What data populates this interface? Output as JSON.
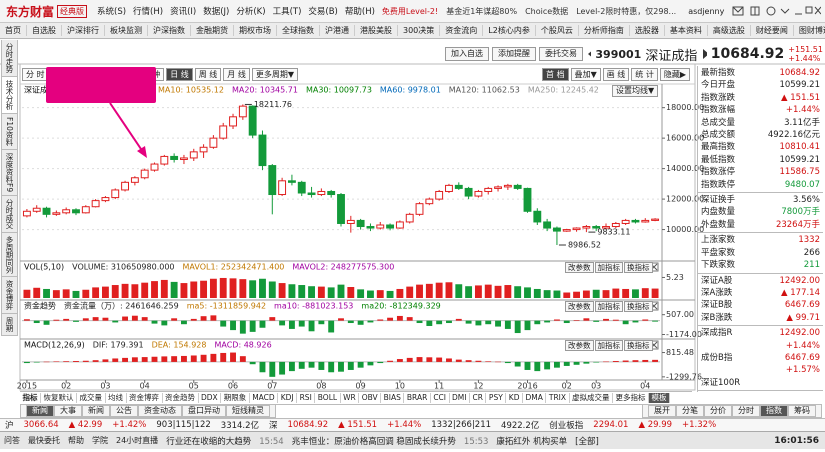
{
  "titlebar": {
    "logo": "东方财富",
    "edition": "经典版",
    "menus": [
      "系统(S)",
      "行情(H)",
      "资讯(I)",
      "数据(J)",
      "分析(K)",
      "工具(T)",
      "交易(B)",
      "帮助(H)"
    ],
    "promos": [
      "免费用Level-2!",
      "基金近1年谋超80%",
      "Choice数据",
      "Level-2限时特惠，仅298..."
    ],
    "user": "asdjenny"
  },
  "navbar": [
    "首页",
    "自选股",
    "沪深排行",
    "板块监测",
    "沪深指数",
    "金融期货",
    "期权市场",
    "全球指数",
    "沪港通",
    "港股美股",
    "300决策",
    "资金流向",
    "L2核心内参",
    "个股风云",
    "分析师指南",
    "选股器",
    "基本资料",
    "高级选股",
    "财经要闻",
    "图财博道",
    "返回"
  ],
  "sidetabs": [
    "分时走势",
    "技术分析",
    "F10资料",
    "深度资料F9",
    "分时成交",
    "多周期同列",
    "资金博弈",
    "周期"
  ],
  "quote_header": {
    "buttons": [
      "加入自选",
      "添加提醒",
      "委托交易"
    ],
    "code": "399001",
    "name": "深证成指",
    "price": "10684.92",
    "change": "+151.51",
    "percent": "+1.44%"
  },
  "chart_toolbar": {
    "periods": [
      "分 时",
      "5分",
      "15分",
      "30分",
      "60分钟",
      "日 线",
      "周 线",
      "月 线",
      "更多周期▼"
    ],
    "selected_period": 5,
    "tools": [
      "首 档",
      "叠加▼",
      "画 线",
      "统 计",
      "隐藏▶"
    ]
  },
  "settings_button": "设置均线▼",
  "panel_buttons": [
    "改参数",
    "加指标",
    "换指标"
  ],
  "chart_data": [
    {
      "type": "candlestick",
      "title": "深证成指",
      "up_color": "#e02020",
      "down_color": "#139a3a",
      "grid": true,
      "legend": [
        {
          "text": "MA10: 10535.12",
          "color": "#c07800"
        },
        {
          "text": "MA20: 10345.71",
          "color": "#a000a0"
        },
        {
          "text": "MA30: 10097.73",
          "color": "#008000"
        },
        {
          "text": "MA60: 9978.01",
          "color": "#0068b8"
        },
        {
          "text": "MA120: 11062.53",
          "color": "#555555"
        },
        {
          "text": "MA250: 12245.42",
          "color": "#999999"
        }
      ],
      "categories": [
        "2015",
        null,
        null,
        null,
        "02",
        null,
        null,
        null,
        "03",
        null,
        null,
        null,
        "04",
        null,
        null,
        null,
        null,
        "05",
        null,
        null,
        null,
        "06",
        null,
        null,
        null,
        "07",
        null,
        null,
        null,
        null,
        "08",
        null,
        null,
        null,
        "09",
        null,
        null,
        null,
        "10",
        null,
        null,
        null,
        "11",
        null,
        null,
        null,
        "12",
        null,
        null,
        null,
        null,
        "2016",
        null,
        null,
        null,
        "02",
        null,
        null,
        "03",
        null,
        null,
        null,
        null,
        "04",
        null
      ],
      "open": [
        10900,
        11200,
        11400,
        11000,
        11100,
        11300,
        11100,
        11500,
        11900,
        12100,
        12600,
        13100,
        13400,
        13900,
        14300,
        14800,
        14600,
        14700,
        15100,
        15400,
        16000,
        16800,
        17400,
        18100,
        16200,
        14200,
        12300,
        13200,
        13100,
        12400,
        12300,
        12500,
        12300,
        10400,
        10600,
        10200,
        10100,
        10300,
        10100,
        10500,
        11000,
        11700,
        12000,
        12500,
        12900,
        12700,
        12200,
        12500,
        12700,
        12800,
        12900,
        12700,
        11200,
        10500,
        10100,
        9900,
        10000,
        10100,
        10200,
        10100,
        10200,
        10400,
        10600,
        10500,
        10600
      ],
      "high": [
        11350,
        11600,
        11500,
        11250,
        11450,
        11400,
        11600,
        12000,
        12200,
        12700,
        13200,
        13500,
        14000,
        14400,
        14900,
        15000,
        14900,
        15300,
        15600,
        16200,
        17000,
        17600,
        18211.76,
        18150,
        16500,
        14300,
        13400,
        13600,
        13200,
        12800,
        12700,
        12600,
        12400,
        10900,
        10700,
        10400,
        10500,
        10400,
        10600,
        11100,
        11800,
        12100,
        12600,
        13000,
        13100,
        12800,
        12600,
        12800,
        12900,
        13000,
        13000,
        12750,
        11400,
        10700,
        10200,
        10050,
        10150,
        10300,
        10300,
        10400,
        10500,
        10700,
        10700,
        10750,
        10750
      ],
      "low": [
        10800,
        11100,
        10800,
        10900,
        11000,
        10950,
        11050,
        11450,
        11800,
        12000,
        12500,
        12900,
        13300,
        13800,
        14200,
        14400,
        14300,
        14500,
        14700,
        15300,
        15900,
        16600,
        17200,
        16000,
        13900,
        11000,
        12200,
        12900,
        12200,
        12100,
        12200,
        12100,
        10200,
        9800,
        10000,
        9900,
        10000,
        9950,
        10050,
        10400,
        10900,
        11600,
        11900,
        12400,
        12600,
        12000,
        12100,
        12300,
        12500,
        12600,
        12600,
        11100,
        10300,
        9900,
        8986.52,
        9850,
        9860,
        9833.11,
        9900,
        10000,
        10100,
        10300,
        10400,
        10450,
        10550
      ],
      "close": [
        11200,
        11400,
        11000,
        11100,
        11300,
        11100,
        11500,
        11900,
        12100,
        12600,
        13100,
        13400,
        13900,
        14300,
        14800,
        14600,
        14700,
        15100,
        15400,
        16000,
        16800,
        17400,
        18100,
        16200,
        14200,
        12300,
        13200,
        13100,
        12400,
        12300,
        12500,
        12300,
        10400,
        10600,
        10200,
        10100,
        10300,
        10100,
        10500,
        11000,
        11700,
        12000,
        12500,
        12900,
        12700,
        12200,
        12500,
        12700,
        12800,
        12900,
        12700,
        11200,
        10500,
        10100,
        9900,
        10000,
        10100,
        10200,
        10100,
        10200,
        10400,
        10600,
        10500,
        10600,
        10684.92
      ],
      "ylim": [
        8200,
        18700
      ],
      "yticks": [
        {
          "value": 18000,
          "label": "18000.00"
        },
        {
          "value": 16000,
          "label": "16000.00"
        },
        {
          "value": 14000,
          "label": "14000.00"
        },
        {
          "value": 12000,
          "label": "12000.00"
        },
        {
          "value": 10000,
          "label": "10000.00"
        }
      ]
    },
    {
      "type": "volume",
      "title": "VOL(5,10)",
      "legend": [
        {
          "text": "VOLUME: 310650980.000",
          "color": "#222222"
        },
        {
          "text": "MAVOL1: 252342471.400",
          "color": "#c07800"
        },
        {
          "text": "MAVOL2: 248277575.300",
          "color": "#a000a0"
        }
      ],
      "values": [
        2.1,
        2.6,
        2.3,
        2.0,
        2.2,
        1.8,
        2.1,
        2.7,
        2.9,
        3.3,
        3.6,
        3.5,
        3.9,
        4.3,
        4.6,
        4.1,
        3.8,
        4.2,
        4.4,
        4.9,
        5.1,
        5.0,
        4.8,
        4.5,
        4.9,
        4.2,
        3.8,
        3.5,
        3.3,
        3.0,
        2.9,
        2.7,
        3.4,
        2.8,
        2.2,
        1.9,
        2.0,
        1.8,
        2.3,
        2.9,
        3.4,
        3.6,
        3.9,
        4.0,
        3.5,
        3.0,
        3.2,
        3.4,
        3.1,
        3.3,
        3.0,
        2.7,
        2.3,
        2.0,
        1.9,
        1.4,
        1.6,
        1.9,
        2.1,
        2.0,
        2.4,
        2.3,
        2.2,
        2.5,
        2.4
      ],
      "ylim": [
        0,
        5.6
      ],
      "yticks": [
        5.23
      ]
    },
    {
      "type": "bar",
      "title": "资金趋势",
      "up_color": "#e02020",
      "down_color": "#139a3a",
      "legend": [
        {
          "text": "资金流量（万）: 2461646.259",
          "color": "#222222"
        },
        {
          "text": "ma5: -1311859.942",
          "color": "#c07800"
        },
        {
          "text": "ma10: -881023.153",
          "color": "#a000a0"
        },
        {
          "text": "ma20: -812349.329",
          "color": "#008000"
        }
      ],
      "values": [
        120,
        -200,
        -350,
        80,
        150,
        -100,
        200,
        300,
        250,
        -150,
        350,
        420,
        300,
        -250,
        -400,
        200,
        -300,
        150,
        380,
        450,
        -500,
        -800,
        -1100,
        -950,
        -600,
        300,
        -400,
        -700,
        -500,
        -900,
        -300,
        -1000,
        200,
        -200,
        -350,
        -150,
        100,
        250,
        400,
        300,
        -200,
        -450,
        -300,
        -200,
        150,
        -250,
        -400,
        -300,
        -500,
        -700,
        -1050,
        -800,
        -300,
        -150,
        100,
        -200,
        50,
        200,
        -100,
        150,
        80,
        -300,
        -150,
        100,
        -80
      ],
      "ylim": [
        -1300,
        650
      ],
      "yticks": [
        {
          "value": 507,
          "label": "507.00"
        },
        {
          "value": -1174,
          "label": "-1174.00"
        }
      ]
    },
    {
      "type": "bar",
      "title": "MACD(12,26,9)",
      "up_color": "#e02020",
      "down_color": "#139a3a",
      "legend": [
        {
          "text": "DIF: 179.391",
          "color": "#222222"
        },
        {
          "text": "DEA: 154.928",
          "color": "#c07800"
        },
        {
          "text": "MACD: 48.926",
          "color": "#a000a0"
        }
      ],
      "values": [
        -100,
        -50,
        20,
        40,
        60,
        80,
        100,
        150,
        220,
        300,
        350,
        400,
        420,
        450,
        480,
        500,
        520,
        560,
        620,
        700,
        780,
        815,
        500,
        -200,
        -900,
        -1299,
        -1100,
        -800,
        -600,
        -500,
        -700,
        -900,
        -850,
        -700,
        -500,
        -300,
        -100,
        100,
        250,
        350,
        420,
        400,
        380,
        300,
        200,
        150,
        100,
        50,
        20,
        -100,
        -400,
        -700,
        -800,
        -650,
        -500,
        -350,
        -250,
        -150,
        -50,
        30,
        80,
        120,
        150,
        170,
        179
      ],
      "ylim": [
        -1400,
        950
      ],
      "yticks": [
        {
          "value": 815.48,
          "label": "815.48"
        },
        {
          "value": -1299.76,
          "label": "-1299.76"
        }
      ]
    }
  ],
  "indicator_tabs": [
    "指标",
    "恢复默认",
    "成交量",
    "均线",
    "资金博弈",
    "资金趋势",
    "DDX",
    "期限象",
    "MACD",
    "KDJ",
    "RSI",
    "BOLL",
    "WR",
    "OBV",
    "BIAS",
    "BRAR",
    "CCI",
    "DMI",
    "CR",
    "PSY",
    "KD",
    "DMA",
    "TRIX",
    "虚拟成交量",
    "更多指标",
    "模板"
  ],
  "info_panel": [
    [
      {
        "label": "最新指数",
        "values": [
          "10684.92"
        ],
        "color": "#d01010"
      },
      {
        "label": "今日开盘",
        "values": [
          "10599.21"
        ],
        "color": "#222222"
      },
      {
        "label": "指数涨跌",
        "values": [
          "▲ 151.51"
        ],
        "color": "#d01010"
      },
      {
        "label": "指数涨幅",
        "values": [
          "+1.44%"
        ],
        "color": "#d01010"
      },
      {
        "label": "总成交量",
        "values": [
          "3.11亿手"
        ],
        "color": "#222222"
      },
      {
        "label": "总成交额",
        "values": [
          "4922.16亿元"
        ],
        "color": "#222222"
      },
      {
        "label": "最高指数",
        "values": [
          "10810.41"
        ],
        "color": "#d01010"
      },
      {
        "label": "最低指数",
        "values": [
          "10599.21"
        ],
        "color": "#222222"
      },
      {
        "label": "指数涨停",
        "values": [
          "11586.75"
        ],
        "color": "#d01010"
      },
      {
        "label": "指数跌停",
        "values": [
          "9480.07"
        ],
        "color": "#139a3a"
      }
    ],
    [
      {
        "label": "深证换手",
        "values": [
          "3.56%"
        ],
        "color": "#222222"
      },
      {
        "label": "内盘数量",
        "values": [
          "7800万手"
        ],
        "color": "#139a3a"
      },
      {
        "label": "外盘数量",
        "values": [
          "23264万手"
        ],
        "color": "#d01010"
      }
    ],
    [
      {
        "label": "上涨家数",
        "values": [
          "1332"
        ],
        "color": "#d01010"
      },
      {
        "label": "平盘家数",
        "values": [
          "266"
        ],
        "color": "#222222"
      },
      {
        "label": "下跌家数",
        "values": [
          "211"
        ],
        "color": "#139a3a"
      }
    ],
    [
      {
        "label": "深证A股",
        "values": [
          "12492.00"
        ],
        "color": "#d01010"
      },
      {
        "label": "深A涨跌",
        "values": [
          "▲ 177.14"
        ],
        "color": "#d01010"
      },
      {
        "label": "深证B股",
        "values": [
          "6467.69"
        ],
        "color": "#d01010"
      },
      {
        "label": "深B涨跌",
        "values": [
          "▲ 99.71"
        ],
        "color": "#d01010"
      }
    ],
    [
      {
        "label": "深成指R",
        "values": [
          "12492.00",
          "+1.44%"
        ],
        "color": "#d01010"
      },
      {
        "label": "成份B指",
        "values": [
          "6467.69",
          "+1.57%"
        ],
        "color": "#d01010"
      },
      {
        "label": "深证100R",
        "values": [],
        "color": "#222222"
      }
    ]
  ],
  "bottom_tabs": {
    "left": [
      "新闻",
      "大事",
      "新闻",
      "公告",
      "资金动态",
      "盘口异动",
      "短线精灵"
    ],
    "right": [
      "展开",
      "分笔",
      "分价",
      "分时",
      "指数",
      "筹码"
    ]
  },
  "ticker": [
    {
      "text": "沪",
      "color": "#222222"
    },
    {
      "text": "3066.64",
      "color": "#d01010"
    },
    {
      "text": "▲ 42.99",
      "color": "#d01010"
    },
    {
      "text": "+1.42%",
      "color": "#d01010"
    },
    {
      "text": "903|115|122",
      "color": "#222222"
    },
    {
      "text": "3314.2亿",
      "color": "#222222"
    },
    {
      "text": "深",
      "color": "#222222"
    },
    {
      "text": "10684.92",
      "color": "#d01010"
    },
    {
      "text": "▲ 151.51",
      "color": "#d01010"
    },
    {
      "text": "+1.44%",
      "color": "#d01010"
    },
    {
      "text": "1332|266|211",
      "color": "#222222"
    },
    {
      "text": "4922.2亿",
      "color": "#222222"
    },
    {
      "text": "创业板指",
      "color": "#222222"
    },
    {
      "text": "2294.01",
      "color": "#d01010"
    },
    {
      "text": "▲ 29.99",
      "color": "#d01010"
    },
    {
      "text": "+1.32%",
      "color": "#d01010"
    }
  ],
  "statusbar": {
    "left": [
      "问答",
      "最快委托",
      "帮助",
      "学院",
      "24小时直播"
    ],
    "news": [
      "行业还在收缩的大趋势",
      "15:54",
      "兆丰恒业：原油价格高回调  稳固成长续升势",
      "15:53",
      "康拓红外 机构买单",
      "[全部]"
    ],
    "clock": "16:01:56"
  }
}
